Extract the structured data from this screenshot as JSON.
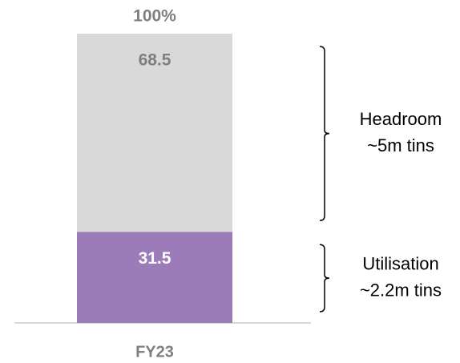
{
  "chart_data": {
    "type": "stacked-bar",
    "categories": [
      "FY23"
    ],
    "series": [
      {
        "color": "#9b7bb8",
        "label_color": "#ffffff",
        "values": [
          31.5
        ]
      },
      {
        "color": "#d9d9d9",
        "label_color": "#7f7f7f",
        "values": [
          68.5
        ]
      }
    ],
    "total_label": "100%",
    "ylim": [
      0,
      100
    ],
    "annotations": [
      {
        "lines": [
          "Utilisation",
          "~2.2m tins"
        ]
      },
      {
        "lines": [
          "Headroom",
          "~5m tins"
        ]
      }
    ]
  }
}
